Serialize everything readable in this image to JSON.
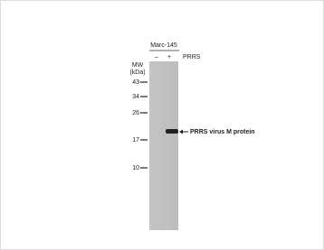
{
  "cell_line": "Marc-145",
  "lanes": [
    "–",
    "+"
  ],
  "treatment": "PRRS",
  "mw_label": [
    "MW",
    "(kDa)"
  ],
  "markers": [
    "43",
    "34",
    "26",
    "17",
    "10"
  ],
  "band_label": "PRRS virus M protein"
}
